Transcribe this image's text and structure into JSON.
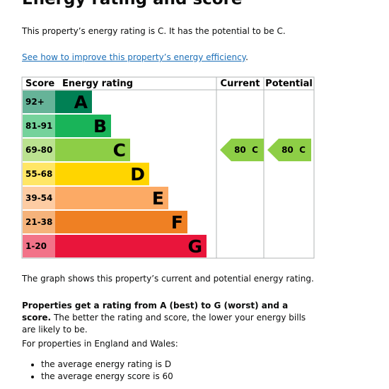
{
  "header": {
    "title": "Energy rating and score"
  },
  "intro": "This property’s energy rating is C. It has the potential to be C.",
  "link": "See how to improve this property’s energy efficiency",
  "link_suffix": ".",
  "table": {
    "headers": [
      "Score",
      "Energy rating",
      "Current",
      "Potential"
    ],
    "bands": [
      {
        "score": "92+",
        "rating": "A",
        "color": "#008054"
      },
      {
        "score": "81-91",
        "rating": "B",
        "color": "#19b459"
      },
      {
        "score": "69-80",
        "rating": "C",
        "color": "#8dce46"
      },
      {
        "score": "55-68",
        "rating": "D",
        "color": "#ffd500"
      },
      {
        "score": "39-54",
        "rating": "E",
        "color": "#fcaa65"
      },
      {
        "score": "21-38",
        "rating": "F",
        "color": "#ef8023"
      },
      {
        "score": "1-20",
        "rating": "G",
        "color": "#e9153b"
      }
    ],
    "current": {
      "score": 80,
      "rating": "C"
    },
    "potential": {
      "score": 80,
      "rating": "C"
    }
  },
  "graph_note": "The graph shows this property’s current and potential energy rating.",
  "explanation": {
    "bold": "Properties get a rating from A (best) to G (worst) and a score.",
    "rest": " The better the rating and score, the lower your energy bills are likely to be."
  },
  "averages_intro": "For properties in England and Wales:",
  "averages": [
    "the average energy rating is D",
    "the average energy score is 60"
  ]
}
